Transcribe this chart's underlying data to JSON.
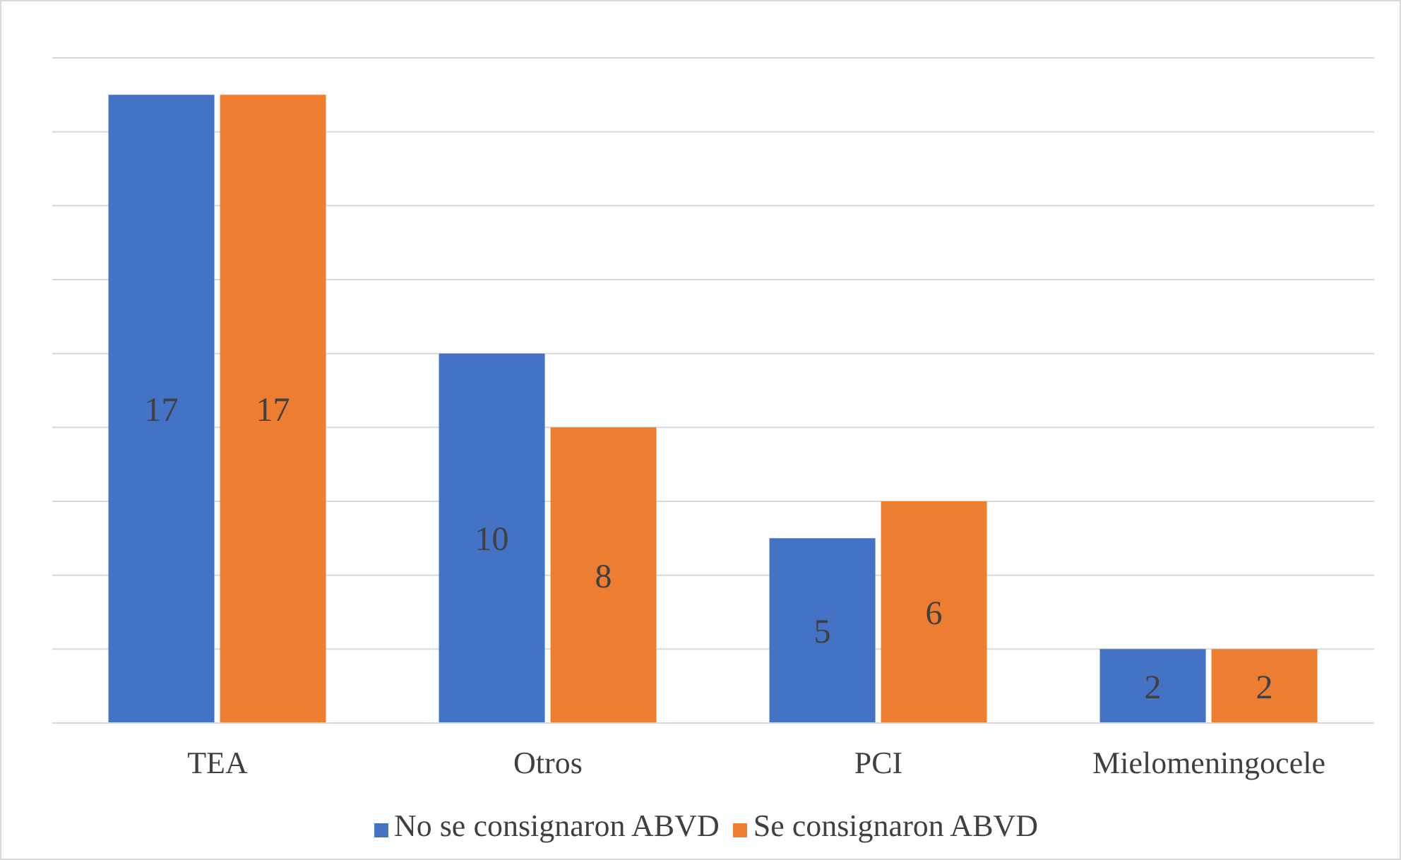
{
  "chart_data": {
    "type": "bar",
    "categories": [
      "TEA",
      "Otros",
      "PCI",
      "Mielomeningocele"
    ],
    "series": [
      {
        "name": "No se consignaron ABVD",
        "color": "#4472c4",
        "values": [
          17,
          10,
          5,
          2
        ]
      },
      {
        "name": "Se consignaron ABVD",
        "color": "#ed7d31",
        "values": [
          17,
          8,
          6,
          2
        ]
      }
    ],
    "ylim": [
      0,
      18
    ],
    "yticks": [
      {
        "value": 0,
        "label": null
      },
      {
        "value": 2,
        "label": null
      },
      {
        "value": 4,
        "label": null
      },
      {
        "value": 6,
        "label": null
      },
      {
        "value": 8,
        "label": null
      },
      {
        "value": 10,
        "label": null
      },
      {
        "value": 12,
        "label": null
      },
      {
        "value": 14,
        "label": null
      },
      {
        "value": 16,
        "label": null
      },
      {
        "value": 18,
        "label": null
      }
    ],
    "tick_labels": "x",
    "grid": "y",
    "legend": "bottom",
    "data_labels": true
  }
}
